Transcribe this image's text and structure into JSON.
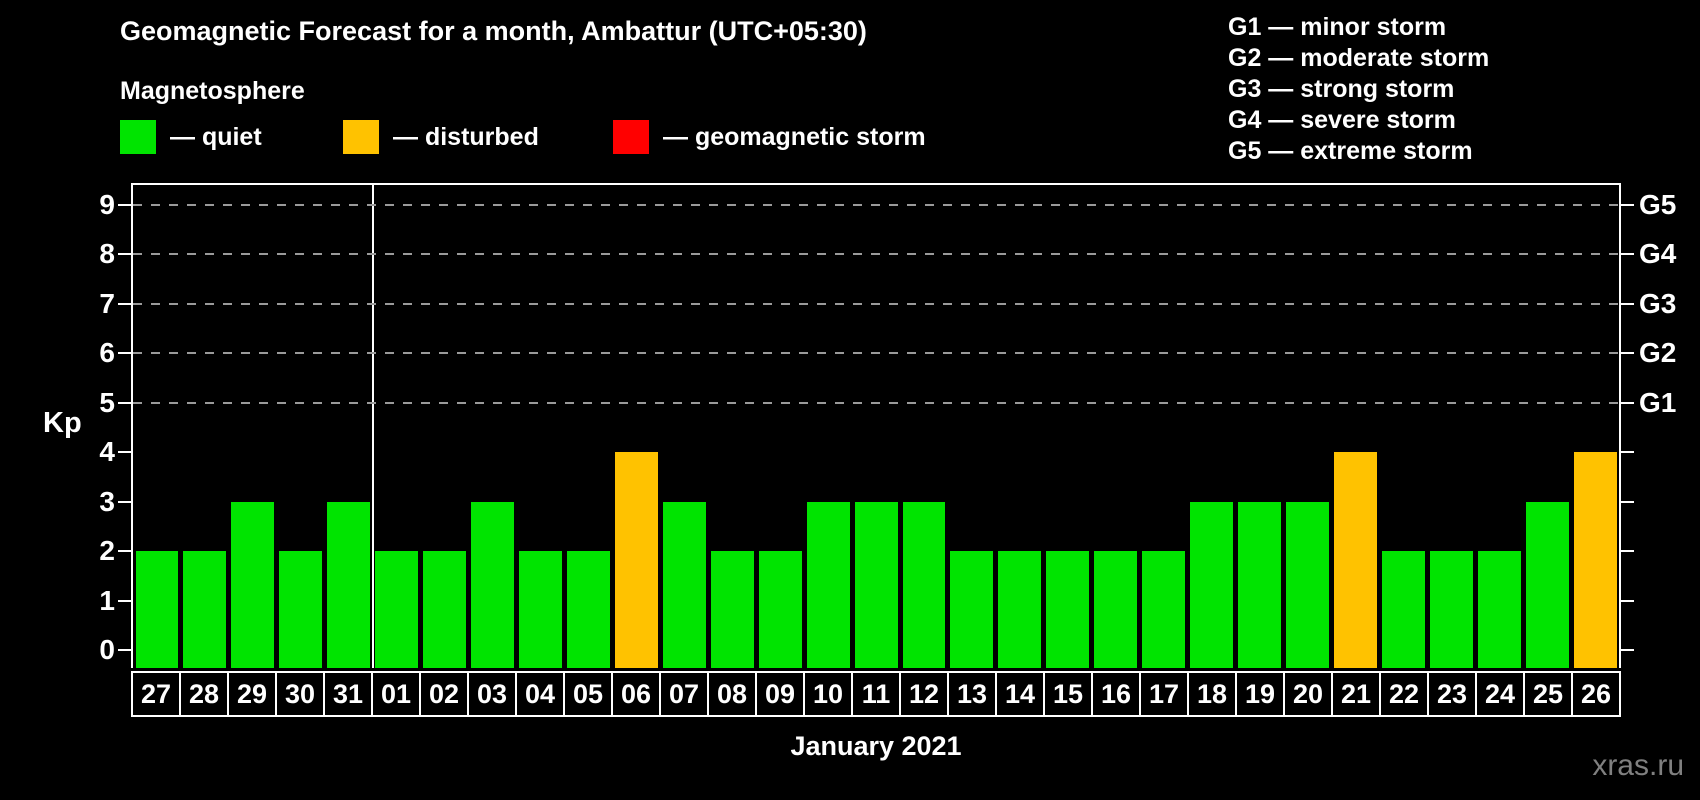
{
  "page": {
    "background": "#000000",
    "watermark": "xras.ru"
  },
  "header": {
    "title": "Geomagnetic Forecast for a month, Ambattur (UTC+05:30)",
    "legend_heading": "Magnetosphere",
    "legend_items": [
      {
        "name": "quiet",
        "label": "— quiet",
        "color": "#00e400"
      },
      {
        "name": "disturbed",
        "label": "— disturbed",
        "color": "#ffc200"
      },
      {
        "name": "storm",
        "label": "— geomagnetic storm",
        "color": "#ff0000"
      }
    ],
    "g_scale_legend": [
      "G1 — minor storm",
      "G2 — moderate storm",
      "G3 — strong storm",
      "G4 — severe storm",
      "G5 — extreme storm"
    ]
  },
  "chart_data": {
    "type": "bar",
    "title": "Geomagnetic Forecast for a month, Ambattur (UTC+05:30)",
    "xlabel": "January 2021",
    "ylabel": "Kp",
    "ylim": [
      0,
      9
    ],
    "y_ticks": [
      0,
      1,
      2,
      3,
      4,
      5,
      6,
      7,
      8,
      9
    ],
    "grid": {
      "dashed_levels": [
        5,
        6,
        7,
        8,
        9
      ],
      "color": "#9a9a9a"
    },
    "right_axis_labels": [
      {
        "label": "G1",
        "kp": 5
      },
      {
        "label": "G2",
        "kp": 6
      },
      {
        "label": "G3",
        "kp": 7
      },
      {
        "label": "G4",
        "kp": 8
      },
      {
        "label": "G5",
        "kp": 9
      }
    ],
    "categories": [
      "27",
      "28",
      "29",
      "30",
      "31",
      "01",
      "02",
      "03",
      "04",
      "05",
      "06",
      "07",
      "08",
      "09",
      "10",
      "11",
      "12",
      "13",
      "14",
      "15",
      "16",
      "17",
      "18",
      "19",
      "20",
      "21",
      "22",
      "23",
      "24",
      "25",
      "26"
    ],
    "values": [
      2,
      2,
      3,
      2,
      3,
      2,
      2,
      3,
      2,
      2,
      4,
      3,
      2,
      2,
      3,
      3,
      3,
      2,
      2,
      2,
      2,
      2,
      3,
      3,
      3,
      4,
      2,
      2,
      2,
      3,
      4
    ],
    "statuses": [
      "quiet",
      "quiet",
      "quiet",
      "quiet",
      "quiet",
      "quiet",
      "quiet",
      "quiet",
      "quiet",
      "quiet",
      "disturbed",
      "quiet",
      "quiet",
      "quiet",
      "quiet",
      "quiet",
      "quiet",
      "quiet",
      "quiet",
      "quiet",
      "quiet",
      "quiet",
      "quiet",
      "quiet",
      "quiet",
      "disturbed",
      "quiet",
      "quiet",
      "quiet",
      "quiet",
      "disturbed"
    ],
    "series_colors": {
      "quiet": "#00e400",
      "disturbed": "#ffc200",
      "storm": "#ff0000"
    },
    "month_separator_after": "31",
    "legend_position": "top-left"
  }
}
